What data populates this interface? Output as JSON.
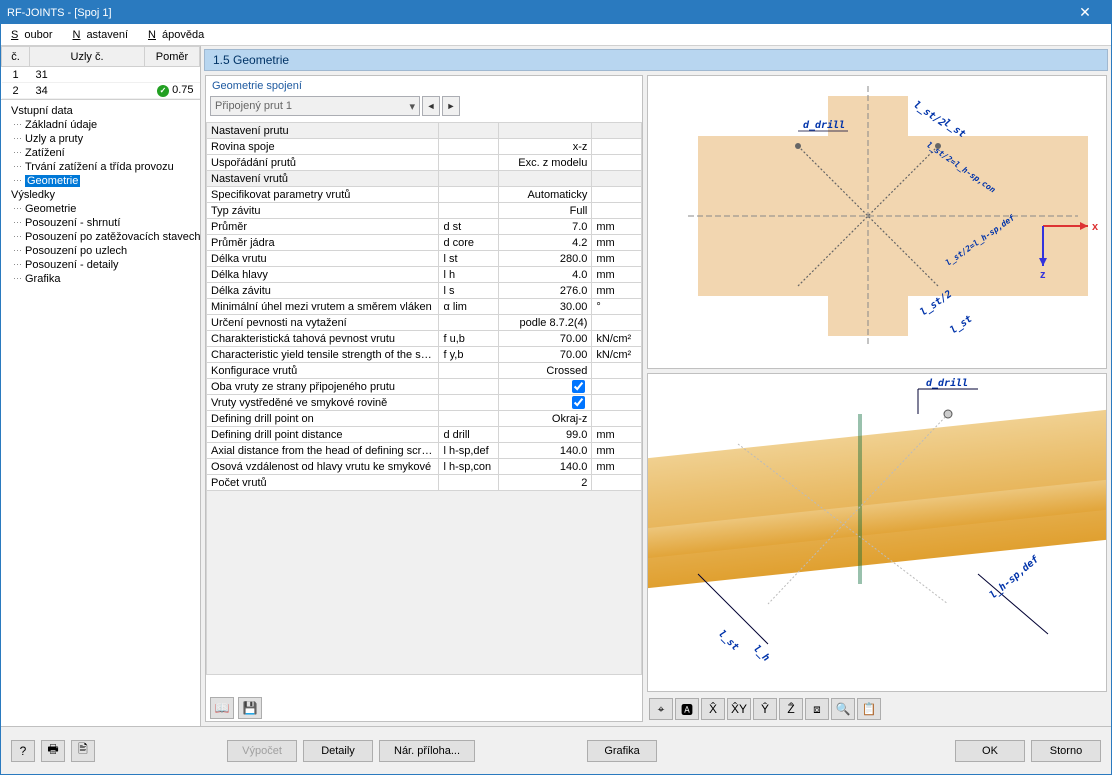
{
  "window": {
    "title": "RF-JOINTS - [Spoj 1]"
  },
  "menu": {
    "items": [
      "Soubor",
      "Nastavení",
      "Nápověda"
    ]
  },
  "left_table": {
    "headers": [
      "č.",
      "Uzly č.",
      "Poměr"
    ],
    "rows": [
      {
        "num": "1",
        "nodes": "31",
        "ratio": "",
        "ok": false
      },
      {
        "num": "2",
        "nodes": "34",
        "ratio": "0.75",
        "ok": true
      }
    ]
  },
  "tree": {
    "input_title": "Vstupní data",
    "input": [
      "Základní údaje",
      "Uzly a pruty",
      "Zatížení",
      "Trvání zatížení a třída provozu",
      "Geometrie"
    ],
    "selected_input": 4,
    "results_title": "Výsledky",
    "results": [
      "Geometrie",
      "Posouzení - shrnutí",
      "Posouzení po zatěžovacích stavech",
      "Posouzení po uzlech",
      "Posouzení - detaily",
      "Grafika"
    ]
  },
  "panel": {
    "header": "1.5 Geometrie",
    "group_title": "Geometrie spojení",
    "dropdown": "Připojený prut 1"
  },
  "props": [
    {
      "type": "section",
      "label": "Nastavení prutu"
    },
    {
      "label": "Rovina spoje",
      "sym": "",
      "val": "x-z",
      "unit": ""
    },
    {
      "label": "Uspořádání prutů",
      "sym": "",
      "val": "Exc. z modelu",
      "unit": ""
    },
    {
      "type": "section",
      "label": "Nastavení vrutů"
    },
    {
      "label": "Specifikovat parametry vrutů",
      "sym": "",
      "val": "Automaticky",
      "unit": ""
    },
    {
      "label": "Typ závitu",
      "sym": "",
      "val": "Full",
      "unit": ""
    },
    {
      "label": "Průměr",
      "sym": "d st",
      "val": "7.0",
      "unit": "mm"
    },
    {
      "label": "Průměr jádra",
      "sym": "d core",
      "val": "4.2",
      "unit": "mm"
    },
    {
      "label": "Délka vrutu",
      "sym": "l st",
      "val": "280.0",
      "unit": "mm"
    },
    {
      "label": "Délka hlavy",
      "sym": "l h",
      "val": "4.0",
      "unit": "mm"
    },
    {
      "label": "Délka závitu",
      "sym": "l s",
      "val": "276.0",
      "unit": "mm"
    },
    {
      "label": "Minimální úhel mezi vrutem a směrem vláken",
      "sym": "α lim",
      "val": "30.00",
      "unit": "°"
    },
    {
      "label": "Určení pevnosti na vytažení",
      "sym": "",
      "val": "podle 8.7.2(4)",
      "unit": ""
    },
    {
      "label": "Charakteristická tahová pevnost vrutu",
      "sym": "f u,b",
      "val": "70.00",
      "unit": "kN/cm²"
    },
    {
      "label": "Characteristic yield tensile strength of the scre",
      "sym": "f y,b",
      "val": "70.00",
      "unit": "kN/cm²"
    },
    {
      "label": "Konfigurace vrutů",
      "sym": "",
      "val": "Crossed",
      "unit": ""
    },
    {
      "label": "Oba vruty ze strany připojeného prutu",
      "sym": "",
      "val": "check",
      "unit": ""
    },
    {
      "label": "Vruty vystředěné ve smykové rovině",
      "sym": "",
      "val": "check",
      "unit": ""
    },
    {
      "label": "Defining drill point on",
      "sym": "",
      "val": "Okraj-z",
      "unit": ""
    },
    {
      "label": "Defining drill point distance",
      "sym": "d drill",
      "val": "99.0",
      "unit": "mm"
    },
    {
      "label": "Axial distance from the head of defining screw",
      "sym": "l h-sp,def",
      "val": "140.0",
      "unit": "mm"
    },
    {
      "label": "Osová vzdálenost od hlavy vrutu ke smykové",
      "sym": "l h-sp,con",
      "val": "140.0",
      "unit": "mm"
    },
    {
      "label": "Počet vrutů",
      "sym": "",
      "val": "2",
      "unit": ""
    }
  ],
  "diagram_top": {
    "labels": [
      "d_drill",
      "l_st/2",
      "l_st",
      "l_st/2=l_h-sp,con",
      "l_st/2=l_h-sp,def",
      "l_st/2",
      "l_st"
    ],
    "axis_x": "x",
    "axis_z": "z"
  },
  "diagram_bot": {
    "labels": [
      "d_drill",
      "l_st",
      "l_h",
      "l_h-sp,def"
    ]
  },
  "view_toolbar": {
    "count": 9
  },
  "footer": {
    "calc": "Výpočet",
    "details": "Detaily",
    "annex": "Nár. příloha...",
    "graphics": "Grafika",
    "ok": "OK",
    "cancel": "Storno"
  }
}
